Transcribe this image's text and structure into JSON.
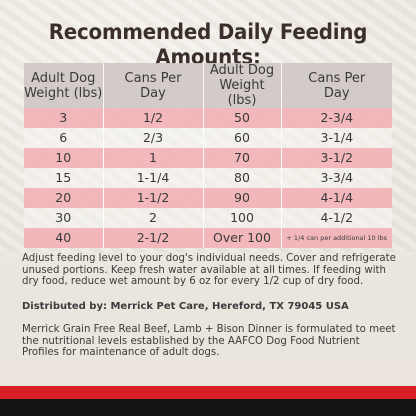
{
  "title": "Recommended Daily Feeding Amounts:",
  "table": {
    "headers": [
      [
        "Adult Dog",
        "Weight (lbs)"
      ],
      [
        "Cans Per",
        "Day"
      ],
      [
        "Adult Dog",
        "Weight (lbs)"
      ],
      [
        "Cans Per",
        "Day"
      ]
    ],
    "rows": [
      [
        "3",
        "1/2",
        "50",
        "2-3/4"
      ],
      [
        "6",
        "2/3",
        "60",
        "3-1/4"
      ],
      [
        "10",
        "1",
        "70",
        "3-1/2"
      ],
      [
        "15",
        "1-1/4",
        "80",
        "3-3/4"
      ],
      [
        "20",
        "1-1/2",
        "90",
        "4-1/4"
      ],
      [
        "30",
        "2",
        "100",
        "4-1/2"
      ],
      [
        "40",
        "2-1/2",
        "Over 100",
        "+ 1/4 can per additional 10 lbs"
      ]
    ]
  },
  "instructions": "Adjust feeding level to your dog's individual needs. Cover and refrigerate unused portions. Keep fresh water available at all times. If feeding with dry food, reduce wet amount by 6 oz for every 1/2 cup of dry food.",
  "distributor": "Distributed by: Merrick Pet Care, Hereford, TX 79045 USA",
  "nutrition_statement": "Merrick Grain Free Real Beef, Lamb + Bison Dinner is formulated to meet the nutritional levels established by the AAFCO Dog Food Nutrient Profiles for maintenance of adult dogs.",
  "colors": {
    "title": "#3b2f2c",
    "header_row": "#cfc8c4",
    "pink_row": "#f2b4b8",
    "red_bar": "#d81f28",
    "black_bar": "#141414"
  }
}
